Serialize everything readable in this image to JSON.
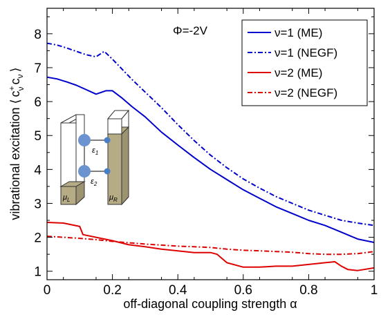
{
  "chart_data": {
    "type": "line",
    "xlabel": "off-diagonal coupling strength α",
    "ylabel": "vibrational excitation ⟨ c+ν cν ⟩",
    "ylabel_parts": {
      "prefix": "vibrational excitation",
      "open": "⟨",
      "c1": "c",
      "sup": "+",
      "sub1": "ν",
      "c2": "c",
      "sub2": "ν",
      "close": "⟩"
    },
    "xlim": [
      0,
      1
    ],
    "ylim": [
      0.75,
      8.75
    ],
    "x_ticks": [
      "0",
      "0.2",
      "0.4",
      "0.6",
      "0.8",
      "1"
    ],
    "x_tick_values": [
      0,
      0.2,
      0.4,
      0.6,
      0.8,
      1.0
    ],
    "y_ticks": [
      "1",
      "2",
      "3",
      "4",
      "5",
      "6",
      "7",
      "8"
    ],
    "y_tick_values": [
      1,
      2,
      3,
      4,
      5,
      6,
      7,
      8
    ],
    "grid": false,
    "legend_position": "top-right",
    "annotation": "Φ=-2V",
    "inset": {
      "mu_left": "μL",
      "mu_right": "μR",
      "eps1": "ε1",
      "eps2": "ε2",
      "mu_left_parts": {
        "base": "μ",
        "sub": "L"
      },
      "mu_right_parts": {
        "base": "μ",
        "sub": "R"
      },
      "eps1_parts": {
        "base": "ε",
        "sub": "1"
      },
      "eps2_parts": {
        "base": "ε",
        "sub": "2"
      }
    },
    "series": [
      {
        "name": "ν=1 (ME)",
        "color": "#0000cc",
        "dash": "solid",
        "x": [
          0,
          0.03,
          0.06,
          0.09,
          0.12,
          0.15,
          0.18,
          0.2,
          0.23,
          0.26,
          0.3,
          0.35,
          0.4,
          0.45,
          0.5,
          0.55,
          0.6,
          0.65,
          0.7,
          0.75,
          0.8,
          0.85,
          0.9,
          0.95,
          1.0
        ],
        "y": [
          6.72,
          6.67,
          6.58,
          6.48,
          6.35,
          6.22,
          6.32,
          6.32,
          6.1,
          5.85,
          5.55,
          5.1,
          4.72,
          4.35,
          4.0,
          3.7,
          3.4,
          3.15,
          2.9,
          2.7,
          2.5,
          2.35,
          2.15,
          1.95,
          1.85
        ]
      },
      {
        "name": "ν=1 (NEGF)",
        "color": "#0000cc",
        "dash": "dashdot",
        "x": [
          0,
          0.03,
          0.06,
          0.09,
          0.12,
          0.15,
          0.175,
          0.2,
          0.23,
          0.26,
          0.3,
          0.35,
          0.4,
          0.45,
          0.5,
          0.55,
          0.6,
          0.65,
          0.7,
          0.75,
          0.8,
          0.85,
          0.9,
          0.95,
          1.0
        ],
        "y": [
          7.72,
          7.67,
          7.58,
          7.48,
          7.38,
          7.32,
          7.48,
          7.25,
          6.95,
          6.65,
          6.28,
          5.82,
          5.32,
          4.85,
          4.42,
          4.05,
          3.72,
          3.45,
          3.2,
          3.0,
          2.8,
          2.65,
          2.5,
          2.42,
          2.35
        ]
      },
      {
        "name": "ν=2 (ME)",
        "color": "#dd0000",
        "dash": "solid",
        "x": [
          0,
          0.05,
          0.1,
          0.11,
          0.15,
          0.2,
          0.25,
          0.3,
          0.35,
          0.4,
          0.45,
          0.5,
          0.52,
          0.55,
          0.6,
          0.65,
          0.7,
          0.75,
          0.8,
          0.85,
          0.88,
          0.9,
          0.92,
          0.95,
          1.0
        ],
        "y": [
          2.44,
          2.42,
          2.32,
          2.08,
          2.0,
          1.9,
          1.78,
          1.72,
          1.65,
          1.6,
          1.55,
          1.55,
          1.5,
          1.25,
          1.12,
          1.12,
          1.15,
          1.15,
          1.2,
          1.25,
          1.28,
          1.15,
          1.05,
          1.02,
          1.1
        ]
      },
      {
        "name": "ν=2 (NEGF)",
        "color": "#dd0000",
        "dash": "dashdot",
        "x": [
          0,
          0.05,
          0.1,
          0.15,
          0.2,
          0.25,
          0.3,
          0.35,
          0.4,
          0.45,
          0.5,
          0.55,
          0.6,
          0.65,
          0.7,
          0.75,
          0.8,
          0.85,
          0.9,
          0.95,
          1.0
        ],
        "y": [
          2.03,
          2.0,
          1.97,
          1.93,
          1.88,
          1.84,
          1.8,
          1.77,
          1.74,
          1.72,
          1.7,
          1.65,
          1.62,
          1.6,
          1.58,
          1.56,
          1.52,
          1.5,
          1.5,
          1.52,
          1.58
        ]
      }
    ]
  }
}
